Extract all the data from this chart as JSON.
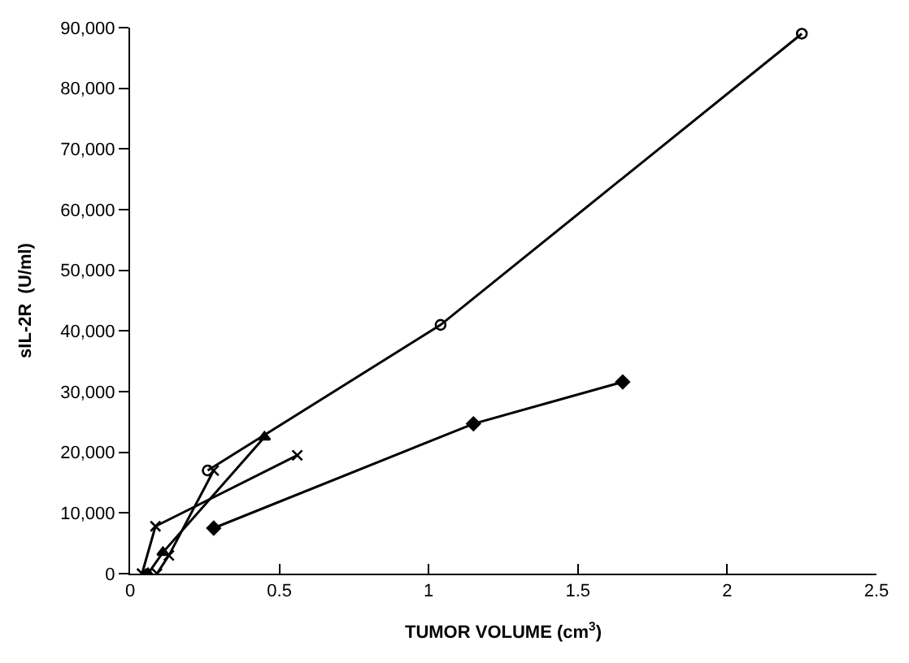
{
  "chart_data": {
    "type": "line",
    "xlabel": "TUMOR VOLUME (cm$^{3}$)",
    "ylabel": "sIL-2R  (U/ml)",
    "xlim": [
      0,
      2.5
    ],
    "xticks": [
      0,
      0.5,
      1,
      1.5,
      2,
      2.5
    ],
    "ylim": [
      0,
      90000
    ],
    "yticks": [
      {
        "value": 0,
        "label": "0"
      },
      {
        "value": 10000,
        "label": "10,000"
      },
      {
        "value": 20000,
        "label": "20,000"
      },
      {
        "value": 30000,
        "label": "30,000"
      },
      {
        "value": 40000,
        "label": "40,000"
      },
      {
        "value": 50000,
        "label": "50,000"
      },
      {
        "value": 60000,
        "label": "60,000"
      },
      {
        "value": 70000,
        "label": "70,000"
      },
      {
        "value": 80000,
        "label": "80,000"
      },
      {
        "value": 90000,
        "label": "90,000"
      }
    ],
    "legend": false,
    "series": [
      {
        "color": "#000000",
        "marker": "circle",
        "x": [
          0.26,
          1.04,
          2.25
        ],
        "values": [
          17000,
          41000,
          89000
        ]
      },
      {
        "color": "#000000",
        "marker": "triangle",
        "x": [
          0.06,
          0.11,
          0.45
        ],
        "values": [
          0,
          3500,
          22500
        ]
      },
      {
        "color": "#000000",
        "marker": "cross",
        "x": [
          0.04,
          0.085,
          0.56
        ],
        "values": [
          0,
          7800,
          19500
        ]
      },
      {
        "color": "#000000",
        "marker": "cross",
        "x": [
          0.09,
          0.13,
          0.28
        ],
        "values": [
          0,
          3000,
          17000
        ]
      },
      {
        "color": "#000000",
        "marker": "diamond",
        "x": [
          0.28,
          1.15,
          1.65
        ],
        "values": [
          7500,
          24700,
          31600
        ]
      }
    ]
  }
}
